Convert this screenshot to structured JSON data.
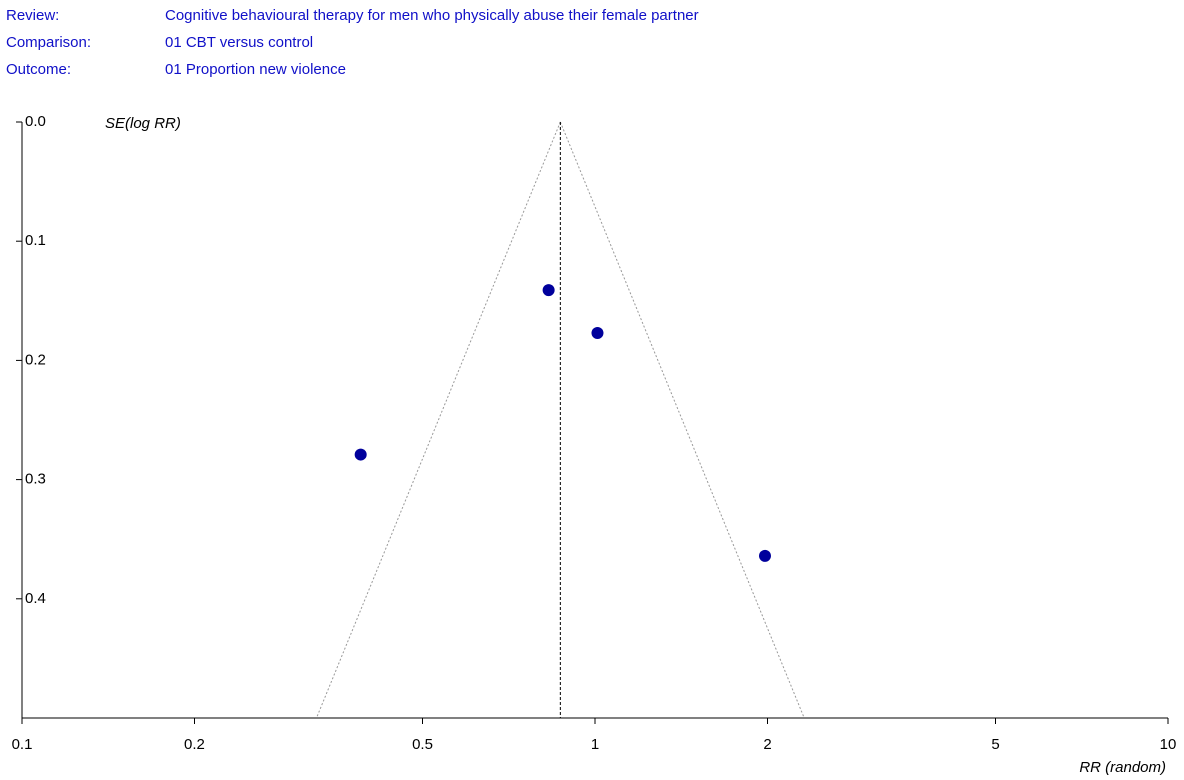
{
  "header": {
    "rows": [
      {
        "label": "Review:",
        "value": "Cognitive behavioural therapy for men who physically abuse their female partner"
      },
      {
        "label": "Comparison:",
        "value": "01 CBT versus control"
      },
      {
        "label": "Outcome:",
        "value": "01 Proportion new violence"
      }
    ]
  },
  "chart_data": {
    "type": "funnel",
    "y_label": "SE(log RR)",
    "x_label": "RR (random)",
    "x": [
      0.83,
      1.01,
      0.39,
      1.98
    ],
    "values": [
      0.141,
      0.177,
      0.279,
      0.364
    ],
    "pooled_estimate": 0.87,
    "color": "#00009c",
    "xscale": "log",
    "xlim": [
      0.1,
      10
    ],
    "xticks": [
      0.1,
      0.2,
      0.5,
      1,
      2,
      5,
      10
    ],
    "ylim": [
      0,
      0.5
    ],
    "yticks": [
      {
        "value": 0,
        "label": "0.0"
      },
      0.1,
      0.2,
      0.3,
      0.4
    ]
  }
}
